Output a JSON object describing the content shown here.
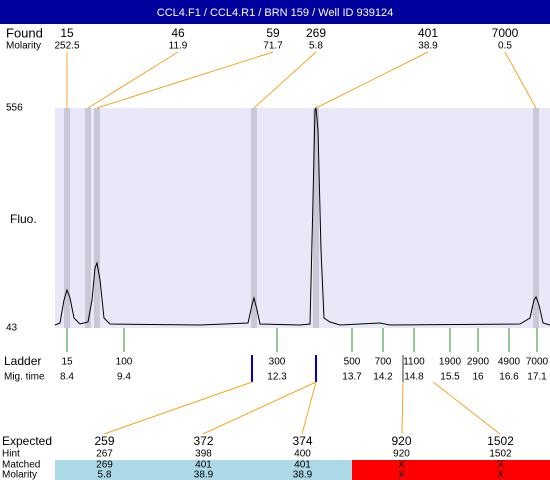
{
  "header": {
    "title": "CCL4.F1 / CCL4.R1 / BRN 159 / Well ID 939124"
  },
  "found": {
    "label": "Found",
    "molarity_label": "Molarity",
    "items": [
      {
        "size": 15,
        "molarity": 252.5
      },
      {
        "size": 46,
        "molarity": 11.9
      },
      {
        "size": 59,
        "molarity": 71.7
      },
      {
        "size": 269,
        "molarity": 5.8
      },
      {
        "size": 401,
        "molarity": 38.9
      },
      {
        "size": 7000,
        "molarity": 0.5
      }
    ]
  },
  "plot": {
    "y_label": "Fluo.",
    "y_max": 556,
    "y_min": 43,
    "background": "#e8e8f8"
  },
  "ladder": {
    "label": "Ladder",
    "mig_label": "Mig. time",
    "items": [
      {
        "size": 15,
        "time": 8.4
      },
      {
        "size": 100,
        "time": 9.4
      },
      {
        "size": 300,
        "time": 12.3
      },
      {
        "size": 500,
        "time": 13.7
      },
      {
        "size": 700,
        "time": 14.2
      },
      {
        "size": 1100,
        "time": 14.8
      },
      {
        "size": 1900,
        "time": 15.5
      },
      {
        "size": 2900,
        "time": 16
      },
      {
        "size": 4900,
        "time": 16.6
      },
      {
        "size": 7000,
        "time": 17.1
      }
    ]
  },
  "table": {
    "row_labels": [
      "Expected",
      "Hint",
      "Matched",
      "Molarity"
    ],
    "columns": [
      {
        "expected": 259,
        "hint": 267,
        "matched": 269,
        "molarity": 5.8,
        "color": "#add8e6"
      },
      {
        "expected": 372,
        "hint": 398,
        "matched": 401,
        "molarity": 38.9,
        "color": "#add8e6"
      },
      {
        "expected": 374,
        "hint": 400,
        "matched": 401,
        "molarity": 38.9,
        "color": "#add8e6"
      },
      {
        "expected": 920,
        "hint": 920,
        "matched": "X",
        "molarity": "X",
        "color": "#ff0000"
      },
      {
        "expected": 1502,
        "hint": 1502,
        "matched": "X",
        "molarity": "X",
        "color": "#ff0000"
      }
    ]
  }
}
